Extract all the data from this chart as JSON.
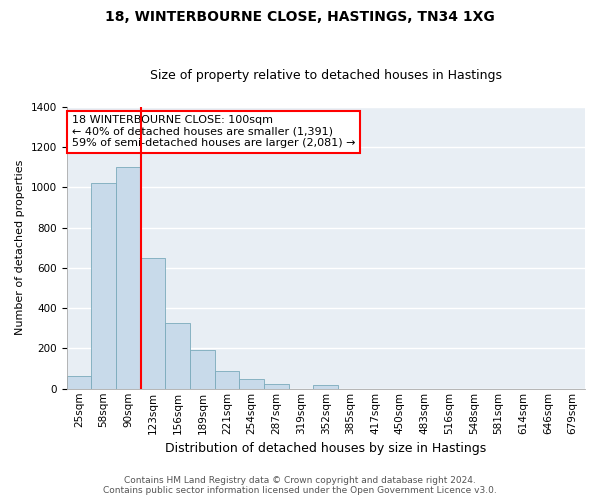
{
  "title": "18, WINTERBOURNE CLOSE, HASTINGS, TN34 1XG",
  "subtitle": "Size of property relative to detached houses in Hastings",
  "xlabel": "Distribution of detached houses by size in Hastings",
  "ylabel": "Number of detached properties",
  "categories": [
    "25sqm",
    "58sqm",
    "90sqm",
    "123sqm",
    "156sqm",
    "189sqm",
    "221sqm",
    "254sqm",
    "287sqm",
    "319sqm",
    "352sqm",
    "385sqm",
    "417sqm",
    "450sqm",
    "483sqm",
    "516sqm",
    "548sqm",
    "581sqm",
    "614sqm",
    "646sqm",
    "679sqm"
  ],
  "bar_values": [
    65,
    1020,
    1100,
    650,
    325,
    190,
    90,
    48,
    25,
    0,
    20,
    0,
    0,
    0,
    0,
    0,
    0,
    0,
    0,
    0,
    0
  ],
  "bar_color": "#c8daea",
  "bar_edge_color": "#7aaabb",
  "vline_color": "red",
  "annotation_text": "18 WINTERBOURNE CLOSE: 100sqm\n← 40% of detached houses are smaller (1,391)\n59% of semi-detached houses are larger (2,081) →",
  "annotation_box_facecolor": "#ffffff",
  "annotation_edge_color": "red",
  "ylim": [
    0,
    1400
  ],
  "yticks": [
    0,
    200,
    400,
    600,
    800,
    1000,
    1200,
    1400
  ],
  "footer_line1": "Contains HM Land Registry data © Crown copyright and database right 2024.",
  "footer_line2": "Contains public sector information licensed under the Open Government Licence v3.0.",
  "fig_bg_color": "#ffffff",
  "plot_bg_color": "#e8eef4",
  "grid_color": "#ffffff",
  "title_fontsize": 10,
  "subtitle_fontsize": 9,
  "xlabel_fontsize": 9,
  "ylabel_fontsize": 8,
  "tick_fontsize": 7.5,
  "annotation_fontsize": 8,
  "footer_fontsize": 6.5
}
